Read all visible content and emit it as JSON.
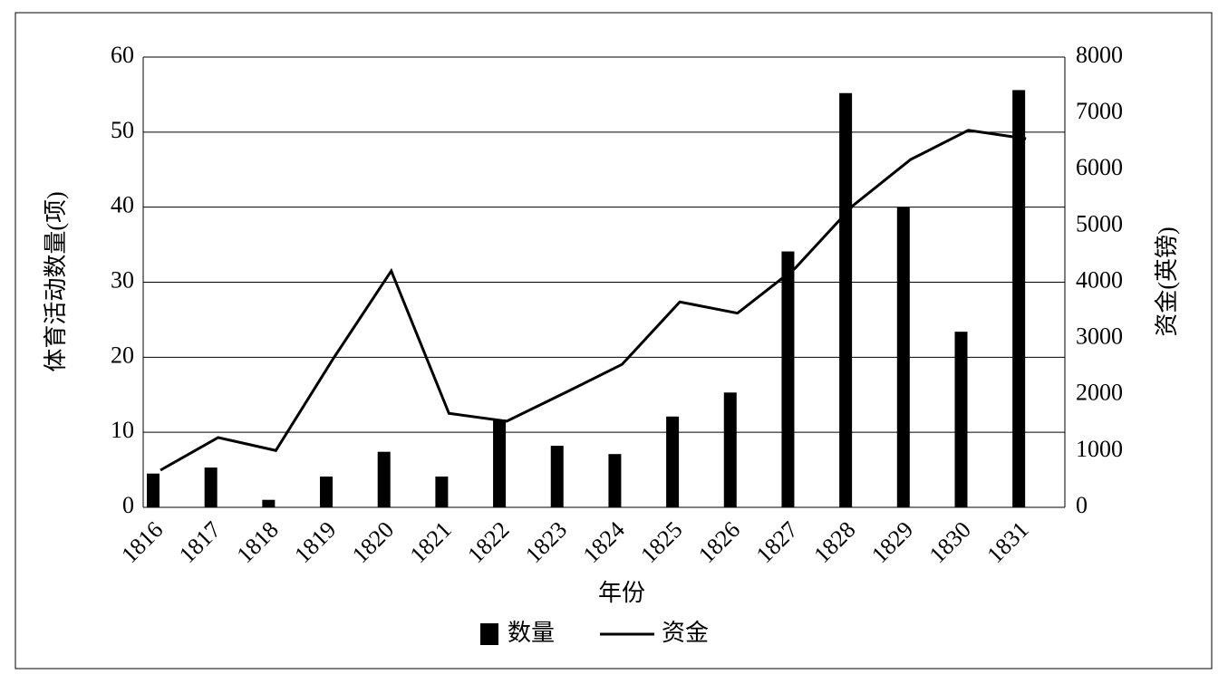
{
  "chart_data": {
    "type": "bar_line",
    "x_label": "年份",
    "y_label": "体育活动数量(项)",
    "y2_label": "资金(英镑)",
    "categories": [
      "1816",
      "1817",
      "1818",
      "1819",
      "1820",
      "1821",
      "1822",
      "1823",
      "1824",
      "1825",
      "1826",
      "1827",
      "1828",
      "1829",
      "1830",
      "1831"
    ],
    "series": [
      {
        "name": "数量",
        "type": "bar",
        "color": "#000000",
        "values": [
          4.5,
          5.3,
          1.0,
          4.1,
          7.4,
          4.1,
          11.7,
          8.2,
          7.1,
          12.1,
          15.3,
          34.1,
          55.2,
          40,
          23.4,
          55.6
        ]
      },
      {
        "name": "资金",
        "type": "line",
        "axis": "y2",
        "color": "#000000",
        "values": [
          660,
          1240,
          1010,
          2650,
          4200,
          1670,
          1530,
          2030,
          2540,
          3650,
          3450,
          4250,
          5360,
          6180,
          6700,
          6550
        ]
      }
    ],
    "ylim": [
      0,
      60
    ],
    "yticks": [
      0,
      10,
      20,
      30,
      40,
      50,
      60
    ],
    "y2lim": [
      0,
      8000
    ],
    "y2ticks": [
      0,
      1000,
      2000,
      3000,
      4000,
      5000,
      6000,
      7000,
      8000
    ],
    "grid": true,
    "legend": "bottom"
  }
}
